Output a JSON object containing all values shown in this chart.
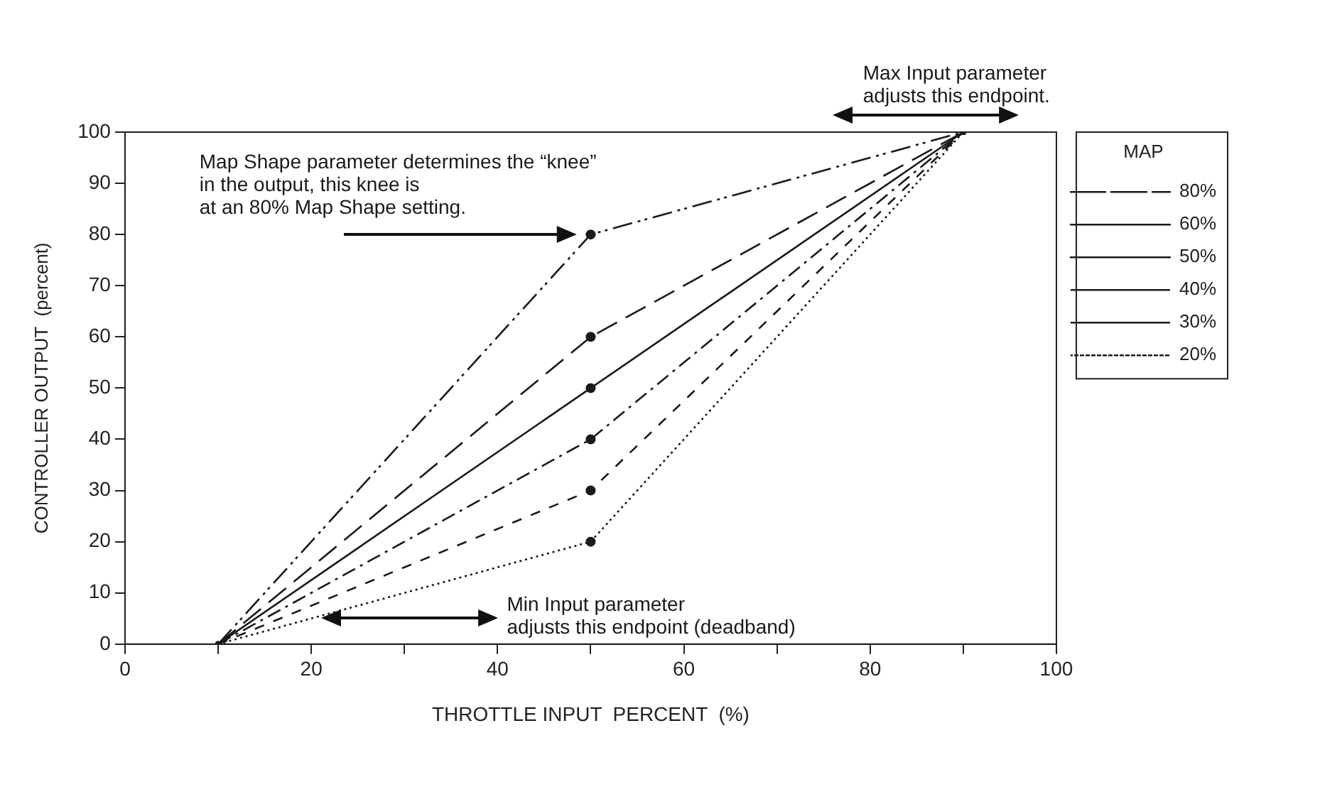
{
  "chart_data": {
    "type": "line",
    "xlabel": "THROTTLE INPUT  PERCENT  (%)",
    "ylabel": "CONTROLLER OUTPUT  (percent)",
    "legend_title": "MAP",
    "legend": "right",
    "grid": false,
    "marker": "circle",
    "xlim": [
      0,
      100
    ],
    "xticks": [
      0,
      {
        "value": 10,
        "label": null
      },
      20,
      {
        "value": 30,
        "label": null
      },
      40,
      {
        "value": 50,
        "label": null
      },
      60,
      {
        "value": 70,
        "label": null
      },
      80,
      {
        "value": 90,
        "label": null
      },
      100
    ],
    "ylim": [
      0,
      100
    ],
    "yticks": [
      0,
      10,
      20,
      30,
      40,
      50,
      60,
      70,
      80,
      90,
      100
    ],
    "series": [
      {
        "name": "80%",
        "color": "#1a1a1a",
        "line_style": "dashed",
        "x": [
          10,
          50,
          90
        ],
        "values": [
          0,
          80,
          100
        ]
      },
      {
        "name": "60%",
        "color": "#1a1a1a",
        "line_style": "dashed",
        "x": [
          10,
          50,
          90
        ],
        "values": [
          0,
          60,
          100
        ]
      },
      {
        "name": "50%",
        "color": "#1a1a1a",
        "line_style": "solid",
        "x": [
          10,
          50,
          90
        ],
        "values": [
          0,
          50,
          100
        ]
      },
      {
        "name": "40%",
        "color": "#1a1a1a",
        "line_style": "dashed",
        "x": [
          10,
          50,
          90
        ],
        "values": [
          0,
          40,
          100
        ]
      },
      {
        "name": "30%",
        "color": "#1a1a1a",
        "line_style": "dashed",
        "x": [
          10,
          50,
          90
        ],
        "values": [
          0,
          30,
          100
        ]
      },
      {
        "name": "20%",
        "color": "#1a1a1a",
        "line_style": "dotted",
        "x": [
          10,
          50,
          90
        ],
        "values": [
          0,
          20,
          100
        ]
      }
    ],
    "annotations": [
      "Max Input parameter\nadjusts this endpoint.",
      "Map Shape parameter determines the “knee”\nin the output, this knee is\nat an 80% Map Shape setting.",
      "Min Input parameter\nadjusts this endpoint (deadband)"
    ]
  }
}
